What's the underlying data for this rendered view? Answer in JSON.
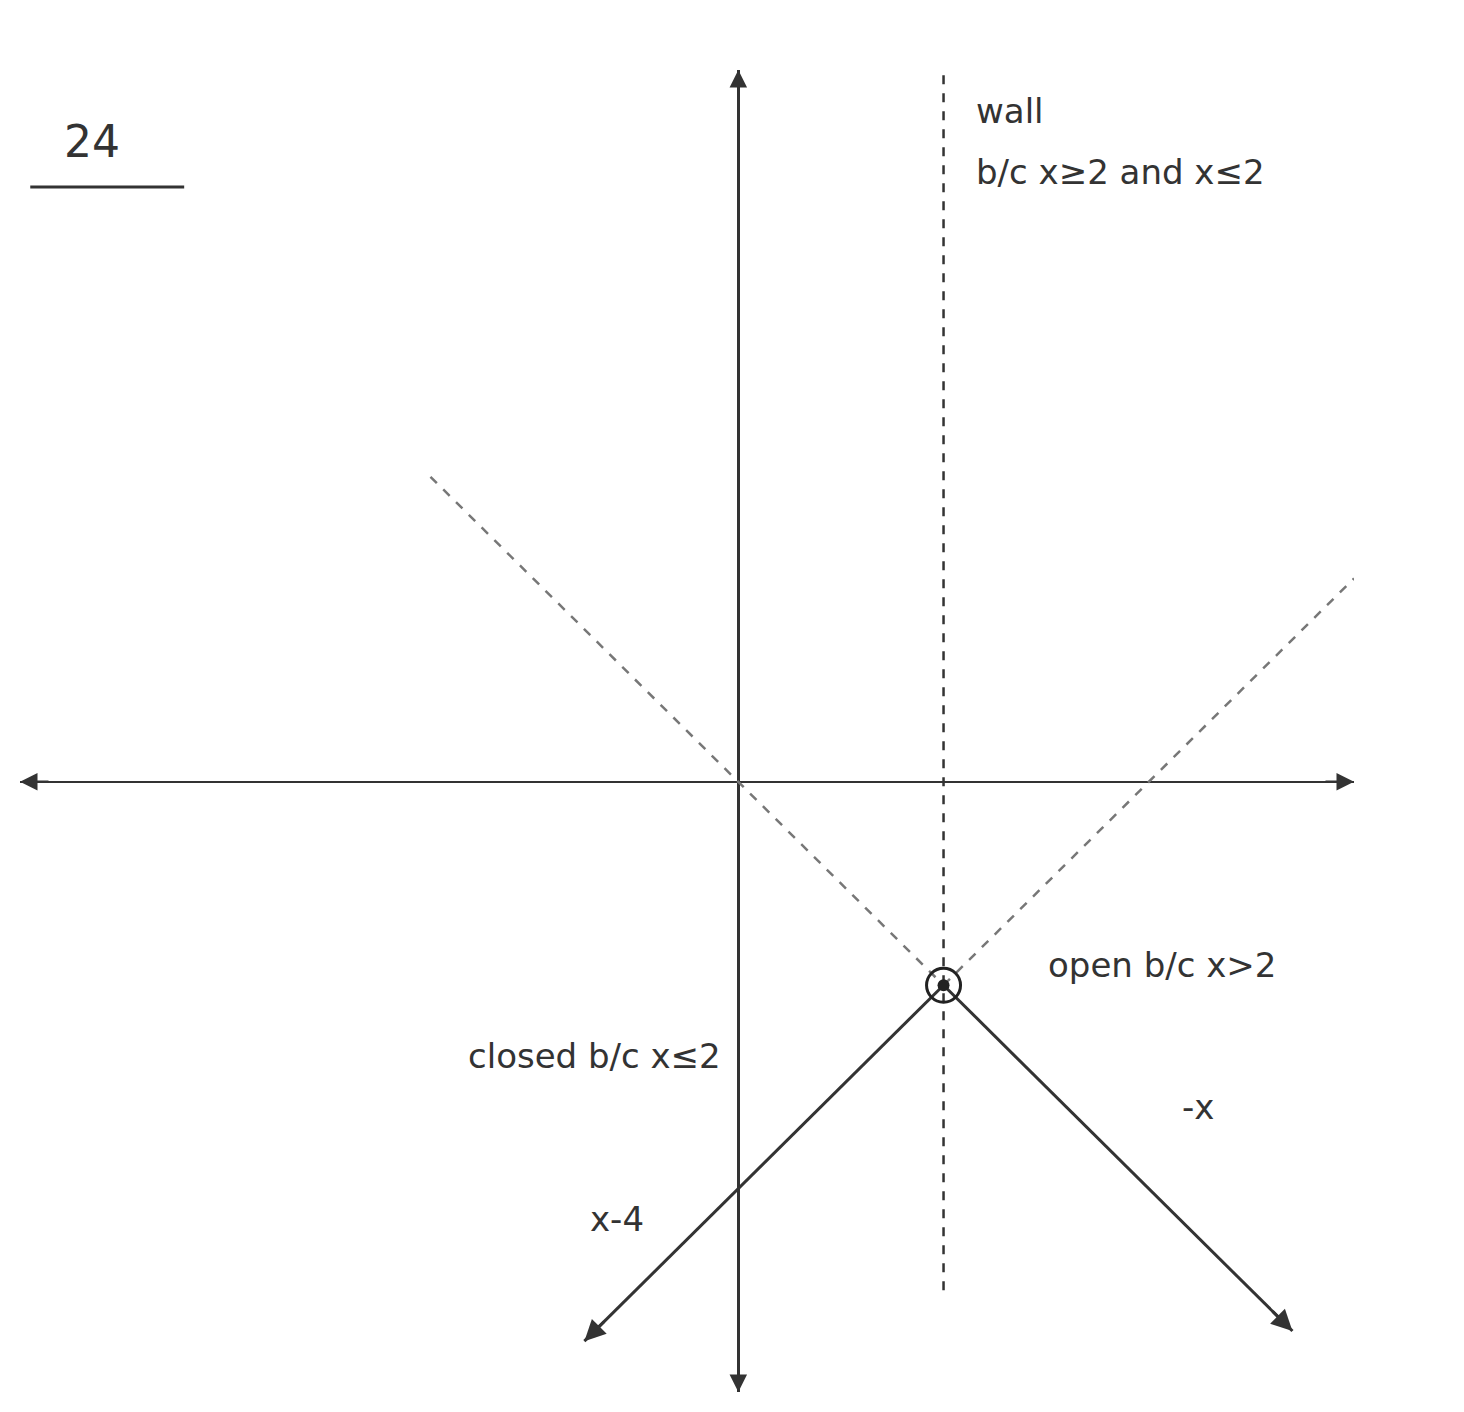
{
  "chart_data": {
    "type": "line",
    "xlim": [
      -7,
      6
    ],
    "ylim": [
      -6,
      7
    ],
    "xticks": [],
    "yticks": [],
    "tick_labels": false,
    "grid": false,
    "series": [
      {
        "type": "line",
        "x": [
          2,
          -1.5
        ],
        "values": [
          -2,
          -5.5
        ],
        "line_style": "solid",
        "marker": "arrow",
        "color": "#333333"
      },
      {
        "type": "line",
        "x": [
          2,
          5.4
        ],
        "values": [
          -2,
          -5.4
        ],
        "line_style": "solid",
        "marker": "arrow",
        "color": "#333333"
      },
      {
        "type": "line",
        "x": [
          -3,
          2
        ],
        "values": [
          3,
          -2
        ],
        "line_style": "dash",
        "color": "#777777"
      },
      {
        "type": "line",
        "x": [
          2,
          6
        ],
        "values": [
          -2,
          2
        ],
        "line_style": "dash",
        "color": "#777777"
      },
      {
        "type": "line",
        "x": [
          2,
          2
        ],
        "values": [
          -5,
          7
        ],
        "line_style": "dash",
        "color": "#333333"
      },
      {
        "type": "scatter",
        "x": [
          2
        ],
        "values": [
          -2
        ],
        "marker": "circle",
        "color": "#222222"
      },
      {
        "type": "scatter",
        "x": [
          2
        ],
        "values": [
          -2
        ],
        "marker": "circle-open",
        "color": "#222222"
      }
    ],
    "annotations": [
      {
        "text": "24",
        "x": -6.3,
        "y": 6.3
      },
      {
        "text": "wall",
        "x": 2.3,
        "y": 6.6
      },
      {
        "text": "b/c x≥2 and x≤2",
        "x": 2.3,
        "y": 6.0
      },
      {
        "text": "open b/c x>2",
        "x": 3.0,
        "y": -1.8
      },
      {
        "text": "closed b/c x≤2",
        "x": -0.15,
        "y": -2.7
      },
      {
        "text": "x-4",
        "x": -0.9,
        "y": -4.3
      },
      {
        "text": "-x",
        "x": 4.3,
        "y": -3.2
      }
    ]
  }
}
